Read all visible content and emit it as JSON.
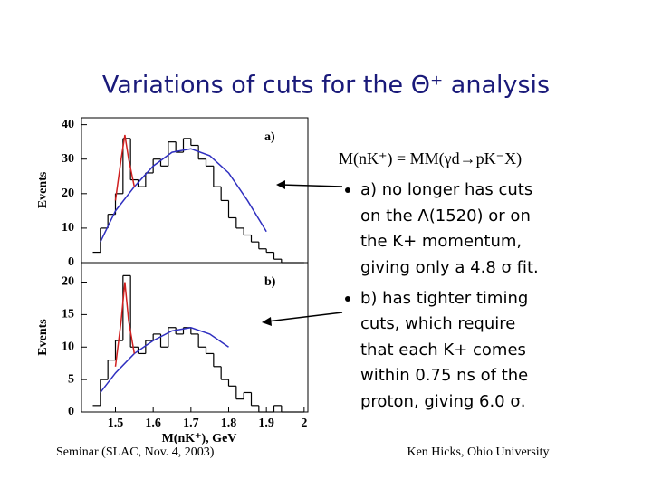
{
  "title": "Variations of cuts for the Θ⁺ analysis",
  "formula": "M(nK⁺) = MM(γd→pK⁻X)",
  "bullets": [
    [
      "a) no longer has cuts",
      "on the Λ(1520) or on",
      "the K+ momentum,",
      "giving only a 4.8 σ fit."
    ],
    [
      "b) has tighter timing",
      "cuts, which require",
      "that each K+ comes",
      "within 0.75 ns of the",
      "proton, giving 6.0 σ."
    ]
  ],
  "footer": {
    "left": "Seminar (SLAC, Nov. 4, 2003)",
    "right": "Ken Hicks, Ohio University"
  },
  "chart_data": [
    {
      "type": "histogram",
      "label": "a)",
      "y_label": "Events",
      "color": "#000000",
      "bins": [
        1.44,
        1.46,
        1.48,
        1.5,
        1.52,
        1.54,
        1.56,
        1.58,
        1.6,
        1.62,
        1.64,
        1.66,
        1.68,
        1.7,
        1.72,
        1.74,
        1.76,
        1.78,
        1.8,
        1.82,
        1.84,
        1.86,
        1.88,
        1.9,
        1.92,
        1.94,
        1.96,
        1.98,
        2.0
      ],
      "values": [
        3,
        10,
        14,
        20,
        36,
        24,
        22,
        26,
        30,
        28,
        35,
        32,
        36,
        34,
        30,
        28,
        22,
        18,
        13,
        10,
        8,
        6,
        4,
        3,
        1,
        0,
        0,
        0
      ],
      "fit_curves": [
        {
          "color": "#3030c0",
          "x": [
            1.46,
            1.5,
            1.55,
            1.6,
            1.65,
            1.7,
            1.75,
            1.8,
            1.85,
            1.9
          ],
          "values": [
            6,
            15,
            22,
            28,
            32,
            33,
            31,
            26,
            18,
            9
          ]
        },
        {
          "color": "#d02020",
          "x": [
            1.5,
            1.515,
            1.525,
            1.535,
            1.55
          ],
          "values": [
            18,
            30,
            37,
            30,
            22
          ]
        }
      ],
      "xlim": [
        1.41,
        2.01
      ],
      "ylim": [
        0,
        42
      ],
      "yticks": [
        0,
        10,
        20,
        30,
        40
      ]
    },
    {
      "type": "histogram",
      "label": "b)",
      "y_label": "Events",
      "x_label": "M(nK⁺), GeV",
      "color": "#000000",
      "bins": [
        1.44,
        1.46,
        1.48,
        1.5,
        1.52,
        1.54,
        1.56,
        1.58,
        1.6,
        1.62,
        1.64,
        1.66,
        1.68,
        1.7,
        1.72,
        1.74,
        1.76,
        1.78,
        1.8,
        1.82,
        1.84,
        1.86,
        1.88,
        1.9,
        1.92,
        1.94,
        1.96,
        1.98,
        2.0
      ],
      "values": [
        1,
        5,
        8,
        11,
        21,
        10,
        9,
        11,
        12,
        10,
        13,
        12,
        13,
        12,
        10,
        9,
        7,
        5,
        4,
        2,
        3,
        1,
        0,
        0,
        1,
        0,
        0,
        0
      ],
      "fit_curves": [
        {
          "color": "#3030c0",
          "x": [
            1.46,
            1.5,
            1.55,
            1.6,
            1.65,
            1.7,
            1.75,
            1.8
          ],
          "values": [
            3,
            6,
            9,
            11,
            12.5,
            13,
            12,
            10
          ]
        },
        {
          "color": "#d02020",
          "x": [
            1.5,
            1.515,
            1.525,
            1.535,
            1.55
          ],
          "values": [
            7,
            14,
            20,
            14,
            9
          ]
        }
      ],
      "xlim": [
        1.41,
        2.01
      ],
      "ylim": [
        0,
        23
      ],
      "yticks": [
        0,
        5,
        10,
        15,
        20
      ],
      "xticks": [
        1.5,
        1.6,
        1.7,
        1.8,
        1.9,
        2
      ]
    }
  ]
}
